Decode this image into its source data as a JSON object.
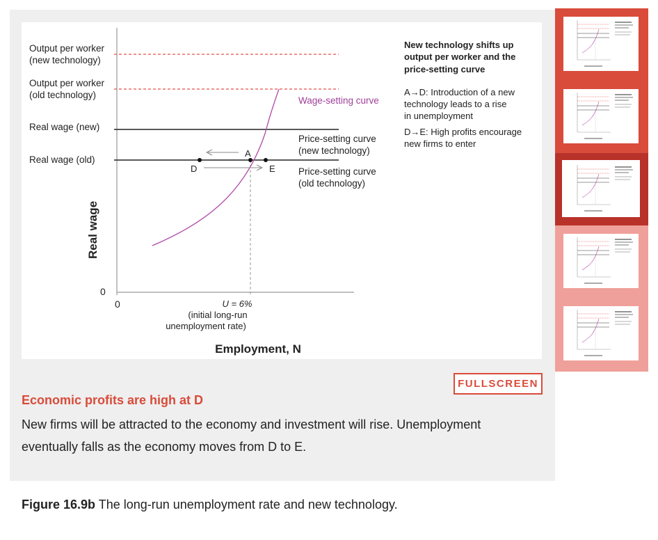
{
  "diagram": {
    "y_axis_label": "Real wage",
    "x_axis_label": "Employment, N",
    "origin_y": "0",
    "origin_x": "0",
    "left_labels": {
      "output_new_1": "Output per worker",
      "output_new_2": "(new technology)",
      "output_old_1": "Output per worker",
      "output_old_2": "(old technology)",
      "wage_new": "Real wage (new)",
      "wage_old": "Real wage (old)"
    },
    "curve_labels": {
      "wage_setting": "Wage-setting curve",
      "psc_new_1": "Price-setting curve",
      "psc_new_2": "(new technology)",
      "psc_old_1": "Price-setting curve",
      "psc_old_2": "(old technology)"
    },
    "points": {
      "a": "A",
      "d": "D",
      "e": "E"
    },
    "x_annotation": {
      "line1": "U = 6%",
      "line2": "(initial long-run",
      "line3": "unemployment rate)"
    },
    "notes": {
      "heading_1": "New technology shifts up",
      "heading_2": "output per worker and the",
      "heading_3": "price-setting curve",
      "ad_1": "A→D: Introduction of a new",
      "ad_2": "technology leads to a rise",
      "ad_3": "in unemployment",
      "de_1": "D→E: High profits encourage",
      "de_2": "new firms to enter"
    },
    "colors": {
      "output_lines": "#e0514a",
      "wage_setting_curve": "#b04aa8",
      "wage_setting_label": "#a0409a",
      "accent": "#d94b3a"
    }
  },
  "fullscreen_label": "FULLSCREEN",
  "step": {
    "title": "Economic profits are high at D",
    "body": "New firms will be attracted to the economy and investment will rise. Unemployment eventually falls as the economy moves from D to E."
  },
  "caption": {
    "figure_number": "Figure 16.9b",
    "text": " The long-run unemployment rate and new technology."
  },
  "thumbnails": {
    "count": 5,
    "active_index": 2,
    "strip_colors": [
      "#d94b3a",
      "#d94b3a",
      "#b8322a",
      "#f0a09a",
      "#f0a09a"
    ]
  }
}
